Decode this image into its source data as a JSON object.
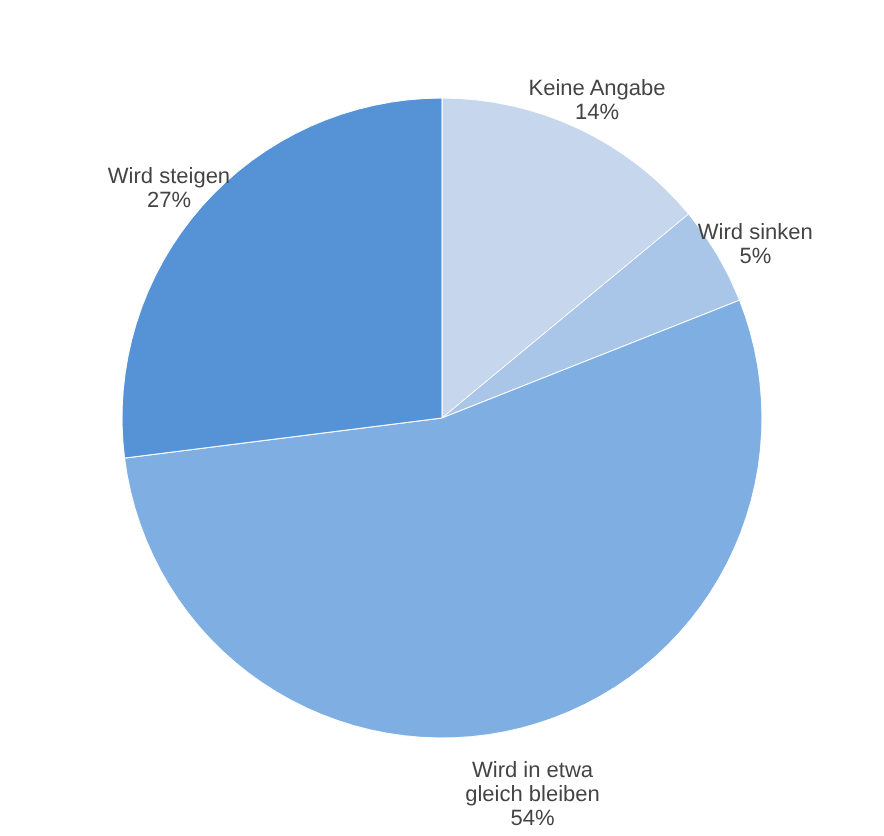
{
  "chart_data": {
    "type": "pie",
    "categories": [
      "Keine Angabe",
      "Wird sinken",
      "Wird in etwa gleich bleiben",
      "Wird steigen"
    ],
    "values": [
      14,
      5,
      54,
      27
    ],
    "value_labels": [
      "14%",
      "5%",
      "54%",
      "27%"
    ],
    "colors": [
      "#c6d6ec",
      "#a9c5e8",
      "#7eaee2",
      "#5592d6"
    ],
    "legend": false
  }
}
